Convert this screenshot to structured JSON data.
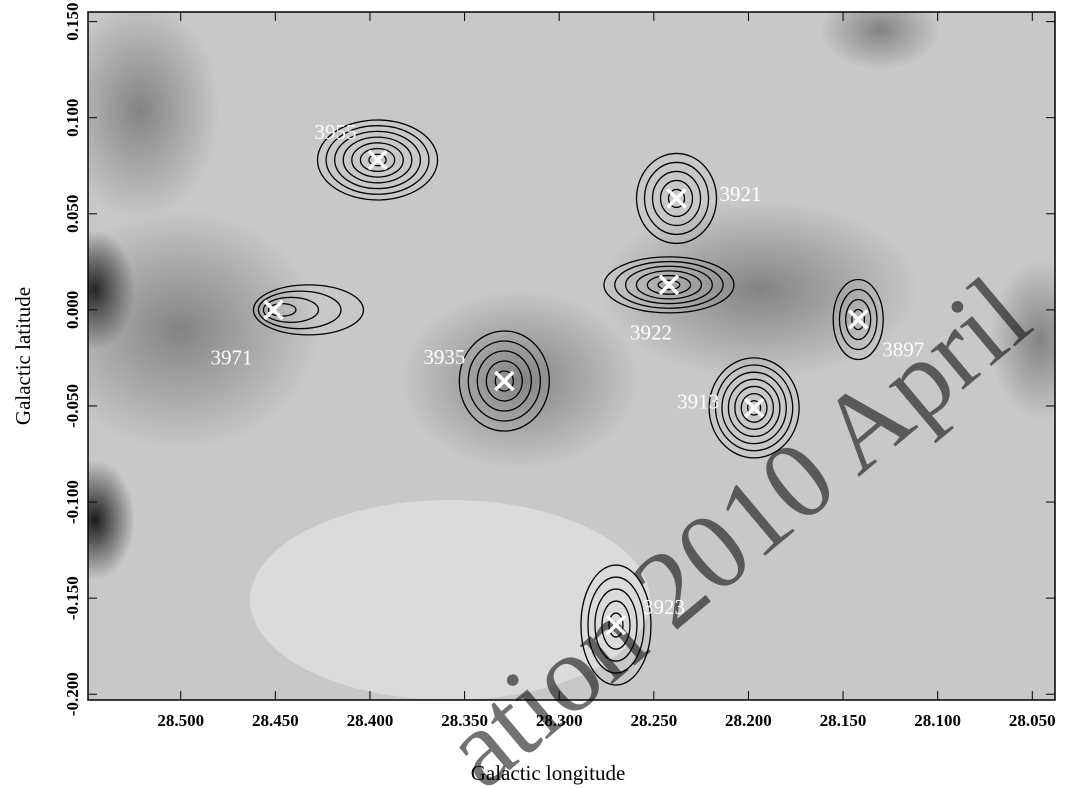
{
  "chart_data": {
    "type": "scatter",
    "x_label": "Galactic longitude",
    "y_label": "Galactic latitude",
    "xlim": [
      28.549,
      28.038
    ],
    "ylim": [
      -0.203,
      0.155
    ],
    "xticks": [
      {
        "value": 28.5,
        "label": "28.500"
      },
      {
        "value": 28.45,
        "label": "28.450"
      },
      {
        "value": 28.4,
        "label": "28.400"
      },
      {
        "value": 28.35,
        "label": "28.350"
      },
      {
        "value": 28.3,
        "label": "28.300"
      },
      {
        "value": 28.25,
        "label": "28.250"
      },
      {
        "value": 28.2,
        "label": "28.200"
      },
      {
        "value": 28.15,
        "label": "28.150"
      },
      {
        "value": 28.1,
        "label": "28.100"
      },
      {
        "value": 28.05,
        "label": "28.050"
      }
    ],
    "yticks": [
      {
        "value": 0.15,
        "label": "0.150"
      },
      {
        "value": 0.1,
        "label": "0.100"
      },
      {
        "value": 0.05,
        "label": "0.050"
      },
      {
        "value": 0,
        "label": "0.000"
      },
      {
        "value": -0.05,
        "label": "-0.050"
      },
      {
        "value": -0.1,
        "label": "-0.100"
      },
      {
        "value": -0.15,
        "label": "-0.150"
      },
      {
        "value": -0.2,
        "label": "-0.200"
      }
    ],
    "labels": [
      "3955",
      "3921",
      "3971",
      "3922",
      "3897",
      "3935",
      "3913",
      "3923"
    ],
    "x": [
      28.396,
      28.238,
      28.451,
      28.242,
      28.142,
      28.329,
      28.197,
      28.27
    ],
    "y": [
      0.078,
      0.058,
      0.0,
      0.013,
      -0.005,
      -0.037,
      -0.051,
      -0.164
    ],
    "color": "#ffffff",
    "watermark": "ation 2010 April"
  }
}
